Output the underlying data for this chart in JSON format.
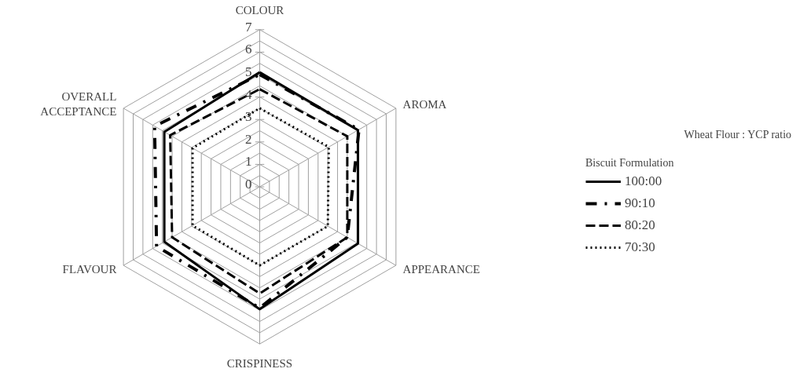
{
  "chart_data": {
    "type": "radar",
    "categories": [
      "COLOUR",
      "AROMA",
      "APPEARANCE",
      "CRISPINESS",
      "FLAVOUR",
      "OVERALL ACCEPTANCE"
    ],
    "ylim": [
      0,
      7
    ],
    "yticks": [
      0,
      1,
      2,
      3,
      4,
      5,
      6,
      7
    ],
    "grid": true,
    "legend": "right",
    "legend_title": "Biscuit Formulation",
    "annotations": [
      "Wheat Flour : YCP ratio"
    ],
    "series": [
      {
        "name": "100:00",
        "color": "#000000",
        "line_style": "solid",
        "values": [
          5.1,
          5.05,
          5.05,
          5.45,
          4.9,
          4.9
        ]
      },
      {
        "name": "90:10",
        "color": "#000000",
        "line_style": "dashdot",
        "values": [
          5.0,
          5.1,
          4.5,
          5.4,
          5.3,
          5.4
        ]
      },
      {
        "name": "80:20",
        "color": "#000000",
        "line_style": "dashed",
        "values": [
          4.35,
          4.5,
          4.5,
          4.75,
          4.5,
          4.6
        ]
      },
      {
        "name": "70:30",
        "color": "#000000",
        "line_style": "dotted",
        "values": [
          3.5,
          3.55,
          3.5,
          3.5,
          3.45,
          3.45
        ]
      }
    ]
  }
}
